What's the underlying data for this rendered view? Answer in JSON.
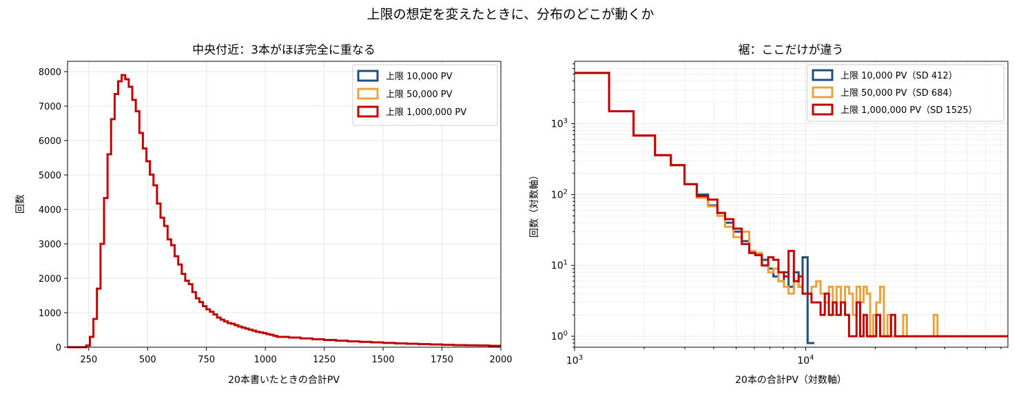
{
  "figure_title": "上限の想定を変えたときに、分布のどこが動くか",
  "colors": {
    "cap_10k": "#1f4e79",
    "cap_50k": "#e8a33d",
    "cap_1m": "#c00000",
    "grid": "#e6e6e6",
    "grid_minor": "#efefef"
  },
  "chart_data": [
    {
      "type": "histogram",
      "title": "中央付近：3本がほぼ完全に重なる",
      "xlabel": "20本書いたときの合計PV",
      "ylabel": "回数",
      "xscale": "linear",
      "yscale": "linear",
      "xlim": [
        160,
        2000
      ],
      "ylim": [
        0,
        8300
      ],
      "xticks": [
        250,
        500,
        750,
        1000,
        1250,
        1500,
        1750,
        2000
      ],
      "yticks": [
        0,
        1000,
        2000,
        3000,
        4000,
        5000,
        6000,
        7000,
        8000
      ],
      "grid": true,
      "legend_position": "top-right",
      "bin_edges_note": "",
      "series": [
        {
          "name": "上限 10,000 PV",
          "color_key": "cap_10k",
          "x": [],
          "values": []
        },
        {
          "name": "上限 50,000 PV",
          "color_key": "cap_50k",
          "x": [],
          "values": []
        },
        {
          "name": "上限 1,000,000 PV",
          "color_key": "cap_1m",
          "x": [
            160,
            240,
            255,
            270,
            285,
            300,
            315,
            330,
            345,
            360,
            375,
            390,
            405,
            420,
            435,
            450,
            465,
            480,
            495,
            510,
            525,
            540,
            555,
            570,
            585,
            600,
            615,
            630,
            645,
            660,
            675,
            690,
            705,
            720,
            735,
            750,
            765,
            780,
            795,
            810,
            825,
            840,
            855,
            870,
            885,
            900,
            915,
            930,
            945,
            960,
            975,
            990,
            1005,
            1020,
            1035,
            1050,
            1100,
            1150,
            1200,
            1250,
            1300,
            1350,
            1400,
            1450,
            1500,
            1550,
            1600,
            1650,
            1700,
            1750,
            1800,
            1850,
            1900,
            1950,
            2000
          ],
          "values": [
            0,
            50,
            300,
            820,
            1700,
            3000,
            4330,
            5600,
            6620,
            7350,
            7720,
            7900,
            7780,
            7560,
            7180,
            6850,
            6220,
            5770,
            5400,
            5010,
            4700,
            4170,
            3760,
            3520,
            3130,
            2960,
            2640,
            2400,
            2130,
            1930,
            1830,
            1600,
            1420,
            1310,
            1190,
            1100,
            1030,
            950,
            860,
            800,
            750,
            700,
            680,
            640,
            600,
            570,
            540,
            510,
            480,
            450,
            430,
            410,
            380,
            360,
            330,
            300,
            280,
            255,
            230,
            210,
            190,
            170,
            155,
            140,
            125,
            110,
            100,
            90,
            80,
            70,
            60,
            55,
            50,
            40,
            30
          ]
        }
      ]
    },
    {
      "type": "histogram",
      "title": "裾：ここだけが違う",
      "xlabel": "20本の合計PV（対数軸）",
      "ylabel": "回数（対数軸）",
      "xscale": "log",
      "yscale": "log",
      "xlim": [
        1000,
        75000
      ],
      "ylim": [
        0.7,
        7600
      ],
      "xticks": [
        1000,
        10000
      ],
      "xtick_labels": [
        "10^3",
        "10^4"
      ],
      "yticks": [
        1,
        10,
        100,
        1000
      ],
      "ytick_labels": [
        "10^0",
        "10^1",
        "10^2",
        "10^3"
      ],
      "grid": true,
      "legend_position": "top-right",
      "series": [
        {
          "name": "上限 10,000 PV（SD 412）",
          "color_key": "cap_10k",
          "x": [
            1000,
            1410,
            1800,
            2230,
            2610,
            2990,
            3380,
            3780,
            4150,
            4480,
            4870,
            5290,
            5700,
            6050,
            6460,
            6880,
            7250,
            7620,
            8050,
            8430,
            8890,
            9320,
            9700,
            10200,
            10550,
            10900
          ],
          "values": [
            5200,
            1500,
            680,
            360,
            260,
            140,
            100,
            70,
            55,
            40,
            30,
            22,
            15,
            14,
            12,
            9,
            7,
            6,
            8,
            5,
            8,
            5,
            13,
            0.8,
            0.8,
            0.8
          ]
        },
        {
          "name": "上限 50,000 PV（SD 684）",
          "color_key": "cap_50k",
          "x": [
            1000,
            1410,
            1800,
            2230,
            2610,
            2990,
            3380,
            3780,
            4150,
            4480,
            4870,
            5290,
            5700,
            6050,
            6460,
            6880,
            7250,
            7620,
            8050,
            8430,
            8890,
            9320,
            9700,
            10200,
            10600,
            11100,
            11600,
            12100,
            12600,
            13100,
            13600,
            14200,
            14800,
            15400,
            16000,
            16600,
            17200,
            17800,
            18400,
            19000,
            19600,
            20200,
            21000,
            21800,
            22600,
            23400,
            24400,
            25400,
            26400,
            27400,
            28400,
            29400,
            30600,
            31800,
            33000,
            34400,
            35800,
            37200,
            38800,
            40400,
            42000,
            43800,
            45600,
            47600,
            49600,
            51600,
            53800,
            56000,
            58400,
            60800,
            63400,
            66000,
            68800,
            71600,
            75000
          ],
          "values": [
            5200,
            1500,
            680,
            360,
            260,
            140,
            90,
            68,
            50,
            35,
            25,
            30,
            16,
            15,
            10,
            8,
            9,
            6,
            5,
            4,
            6,
            5,
            4,
            4,
            5,
            6,
            4,
            3,
            5,
            2,
            5,
            3,
            5,
            4,
            2,
            5,
            3,
            5,
            4,
            1,
            2,
            3,
            5,
            1,
            2,
            1,
            1,
            1,
            2,
            1,
            1,
            1,
            1,
            1,
            1,
            1,
            2,
            1,
            1,
            1,
            1,
            1,
            1,
            1,
            1,
            1,
            1,
            1,
            1,
            1,
            1,
            1,
            1,
            1,
            1
          ]
        },
        {
          "name": "上限 1,000,000 PV（SD 1525）",
          "color_key": "cap_1m",
          "x": [
            1000,
            1410,
            1800,
            2230,
            2610,
            2990,
            3380,
            3780,
            4150,
            4480,
            4870,
            5290,
            5700,
            6050,
            6460,
            6880,
            7250,
            7620,
            8050,
            8430,
            8890,
            9320,
            9700,
            10200,
            10600,
            11100,
            11600,
            12100,
            12600,
            13100,
            13600,
            14200,
            14800,
            15400,
            16000,
            16600,
            17200,
            17800,
            18400,
            19000,
            19600,
            20200,
            21000,
            21800,
            22600,
            23400,
            24400,
            25400,
            26400,
            27400,
            28400,
            29400,
            30600,
            31800,
            33000,
            34400,
            35800,
            37200,
            38800,
            40400,
            42000,
            43800,
            45600,
            47600,
            49600,
            51600,
            53800,
            56000,
            58400,
            60800,
            63400,
            66000,
            68800,
            71600,
            75000
          ],
          "values": [
            5200,
            1500,
            680,
            360,
            260,
            140,
            95,
            85,
            55,
            45,
            33,
            20,
            15,
            14,
            10,
            13,
            12,
            8,
            7,
            16,
            6,
            7,
            4,
            4,
            3,
            3,
            2,
            4,
            2,
            3,
            2,
            3,
            2,
            1,
            1,
            3,
            1,
            2,
            1,
            1,
            1,
            2,
            1,
            1,
            1,
            2,
            1,
            1,
            1,
            1,
            1,
            1,
            1,
            1,
            1,
            1,
            1,
            1,
            1,
            1,
            1,
            1,
            1,
            1,
            1,
            1,
            1,
            1,
            1,
            1,
            1,
            1,
            1,
            1,
            1
          ]
        }
      ]
    }
  ]
}
